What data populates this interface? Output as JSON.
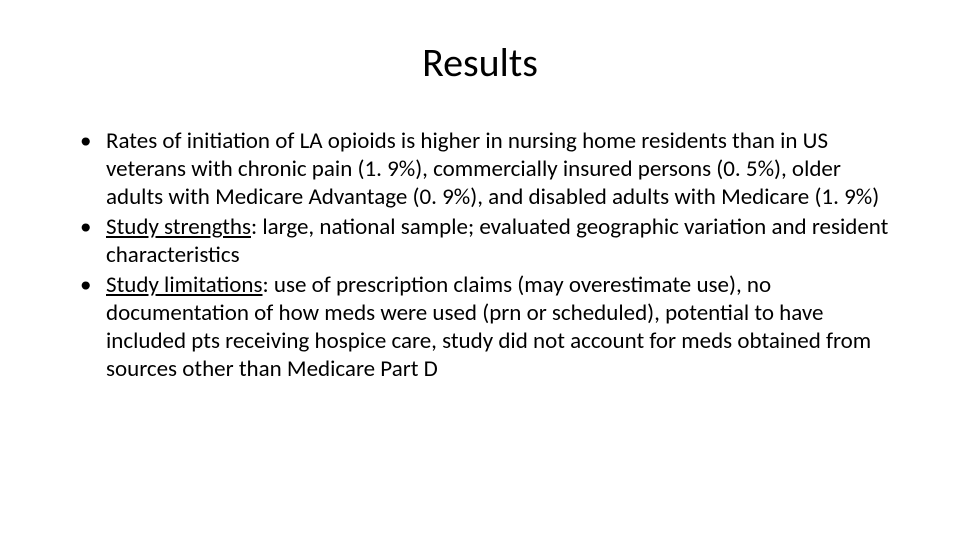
{
  "slide": {
    "title": "Results",
    "title_fontsize": 40,
    "title_fontweight": 400,
    "title_color": "#000000",
    "title_align": "center",
    "bullet_fontsize": 23,
    "bullet_lineheight": 1.22,
    "bullet_color": "#000000",
    "background_color": "#ffffff",
    "font_family": "Calibri",
    "bullets": [
      {
        "text": "Rates of initiation of LA opioids is higher in nursing home residents than in US veterans with chronic pain (1. 9%), commercially insured persons (0. 5%), older adults with Medicare Advantage (0. 9%), and disabled adults with Medicare (1. 9%)"
      },
      {
        "label": "Study strengths",
        "text_after": ": large, national sample; evaluated geographic variation and resident characteristics"
      },
      {
        "label": "Study limitations",
        "text_after": ": use of prescription claims (may overestimate use), no documentation of how meds were used (prn or scheduled), potential to have included pts receiving hospice care, study did not account for meds obtained from sources other than Medicare Part D"
      }
    ]
  }
}
